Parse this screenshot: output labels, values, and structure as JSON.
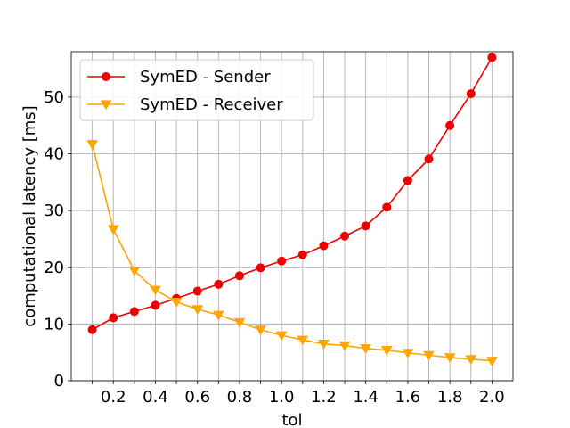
{
  "chart_data": {
    "type": "line",
    "xlabel": "tol",
    "ylabel": "computational latency [ms]",
    "x": [
      0.1,
      0.2,
      0.3,
      0.4,
      0.5,
      0.6,
      0.7,
      0.8,
      0.9,
      1.0,
      1.1,
      1.2,
      1.3,
      1.4,
      1.5,
      1.6,
      1.7,
      1.8,
      1.9,
      2.0
    ],
    "xlim": [
      0.0,
      2.1
    ],
    "ylim": [
      0,
      58
    ],
    "x_ticks": [
      0.2,
      0.4,
      0.6,
      0.8,
      1.0,
      1.2,
      1.4,
      1.6,
      1.8,
      2.0
    ],
    "x_tick_labels": [
      "0.2",
      "0.4",
      "0.6",
      "0.8",
      "1.0",
      "1.2",
      "1.4",
      "1.6",
      "1.8",
      "2.0"
    ],
    "y_ticks": [
      0,
      10,
      20,
      30,
      40,
      50
    ],
    "y_tick_labels": [
      "0",
      "10",
      "20",
      "30",
      "40",
      "50"
    ],
    "grid": true,
    "grid_at": "every data x value and every y tick",
    "legend_position": "top-left",
    "series": [
      {
        "name": "SymED - Sender",
        "color": "#ee0000",
        "marker": "circle",
        "values": [
          9.0,
          11.1,
          12.2,
          13.3,
          14.5,
          15.8,
          17.0,
          18.5,
          19.9,
          21.1,
          22.2,
          23.8,
          25.5,
          27.3,
          30.6,
          35.3,
          39.1,
          45.0,
          50.6,
          57.0
        ]
      },
      {
        "name": "SymED - Receiver",
        "color": "#ffa500",
        "marker": "triangle-down",
        "values": [
          41.7,
          26.7,
          19.4,
          16.0,
          13.9,
          12.6,
          11.6,
          10.3,
          9.0,
          8.0,
          7.2,
          6.5,
          6.2,
          5.7,
          5.4,
          4.9,
          4.5,
          4.1,
          3.8,
          3.5
        ]
      }
    ]
  }
}
